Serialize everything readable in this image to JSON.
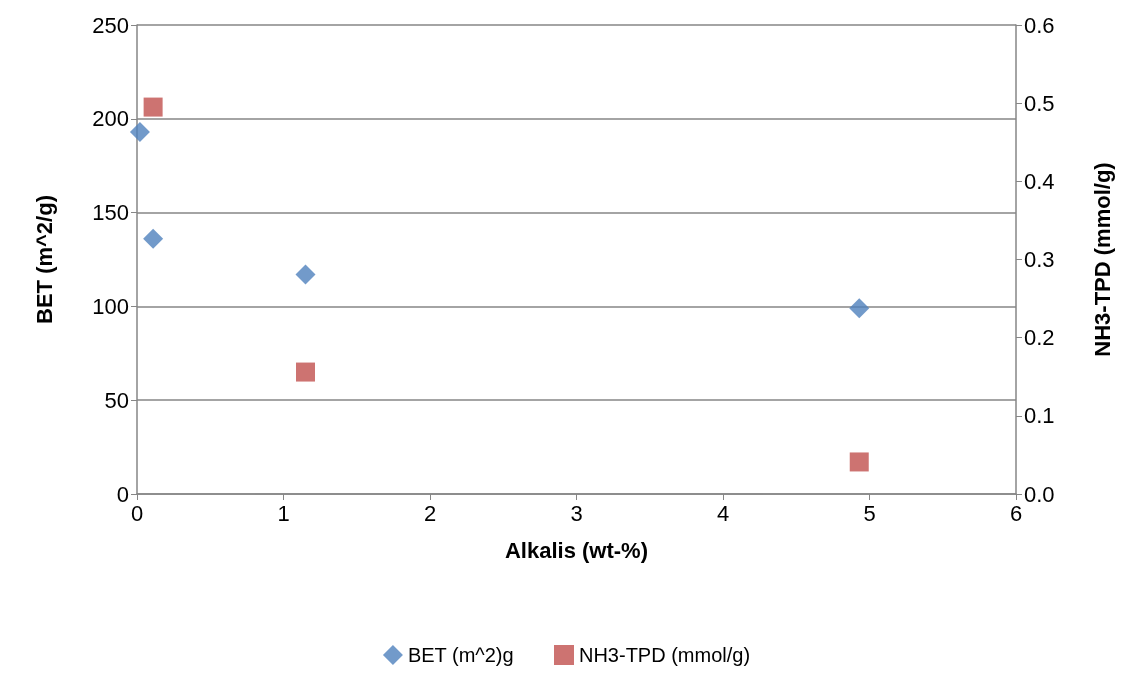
{
  "chart_data": {
    "type": "scatter",
    "xlabel": "Alkalis (wt-%)",
    "ylabel": "BET (m^2/g)",
    "y2label": "NH3-TPD (mmol/g)",
    "xlim": [
      0,
      6
    ],
    "xticks": [
      0,
      1,
      2,
      3,
      4,
      5,
      6
    ],
    "ylim": [
      0,
      250
    ],
    "yticks": [
      0,
      50,
      100,
      150,
      200,
      250
    ],
    "y2lim": [
      0,
      0.6
    ],
    "y2ticks": [
      {
        "value": 0,
        "label": "0.0"
      },
      0.1,
      0.2,
      0.3,
      0.4,
      0.5,
      0.6
    ],
    "grid": "y",
    "legend": "bottom",
    "series": [
      {
        "name": "BET (m^2)g",
        "color": "#4f81bd",
        "marker": "diamond",
        "x": [
          0.02,
          0.11,
          1.15,
          4.93
        ],
        "values": [
          193,
          136,
          117,
          99
        ]
      },
      {
        "name": "NH3-TPD (mmol/g)",
        "color": "#c0504d",
        "marker": "square",
        "axis": "y2",
        "x": [
          0.11,
          1.15,
          4.93
        ],
        "values": [
          0.495,
          0.156,
          0.041
        ]
      }
    ]
  }
}
